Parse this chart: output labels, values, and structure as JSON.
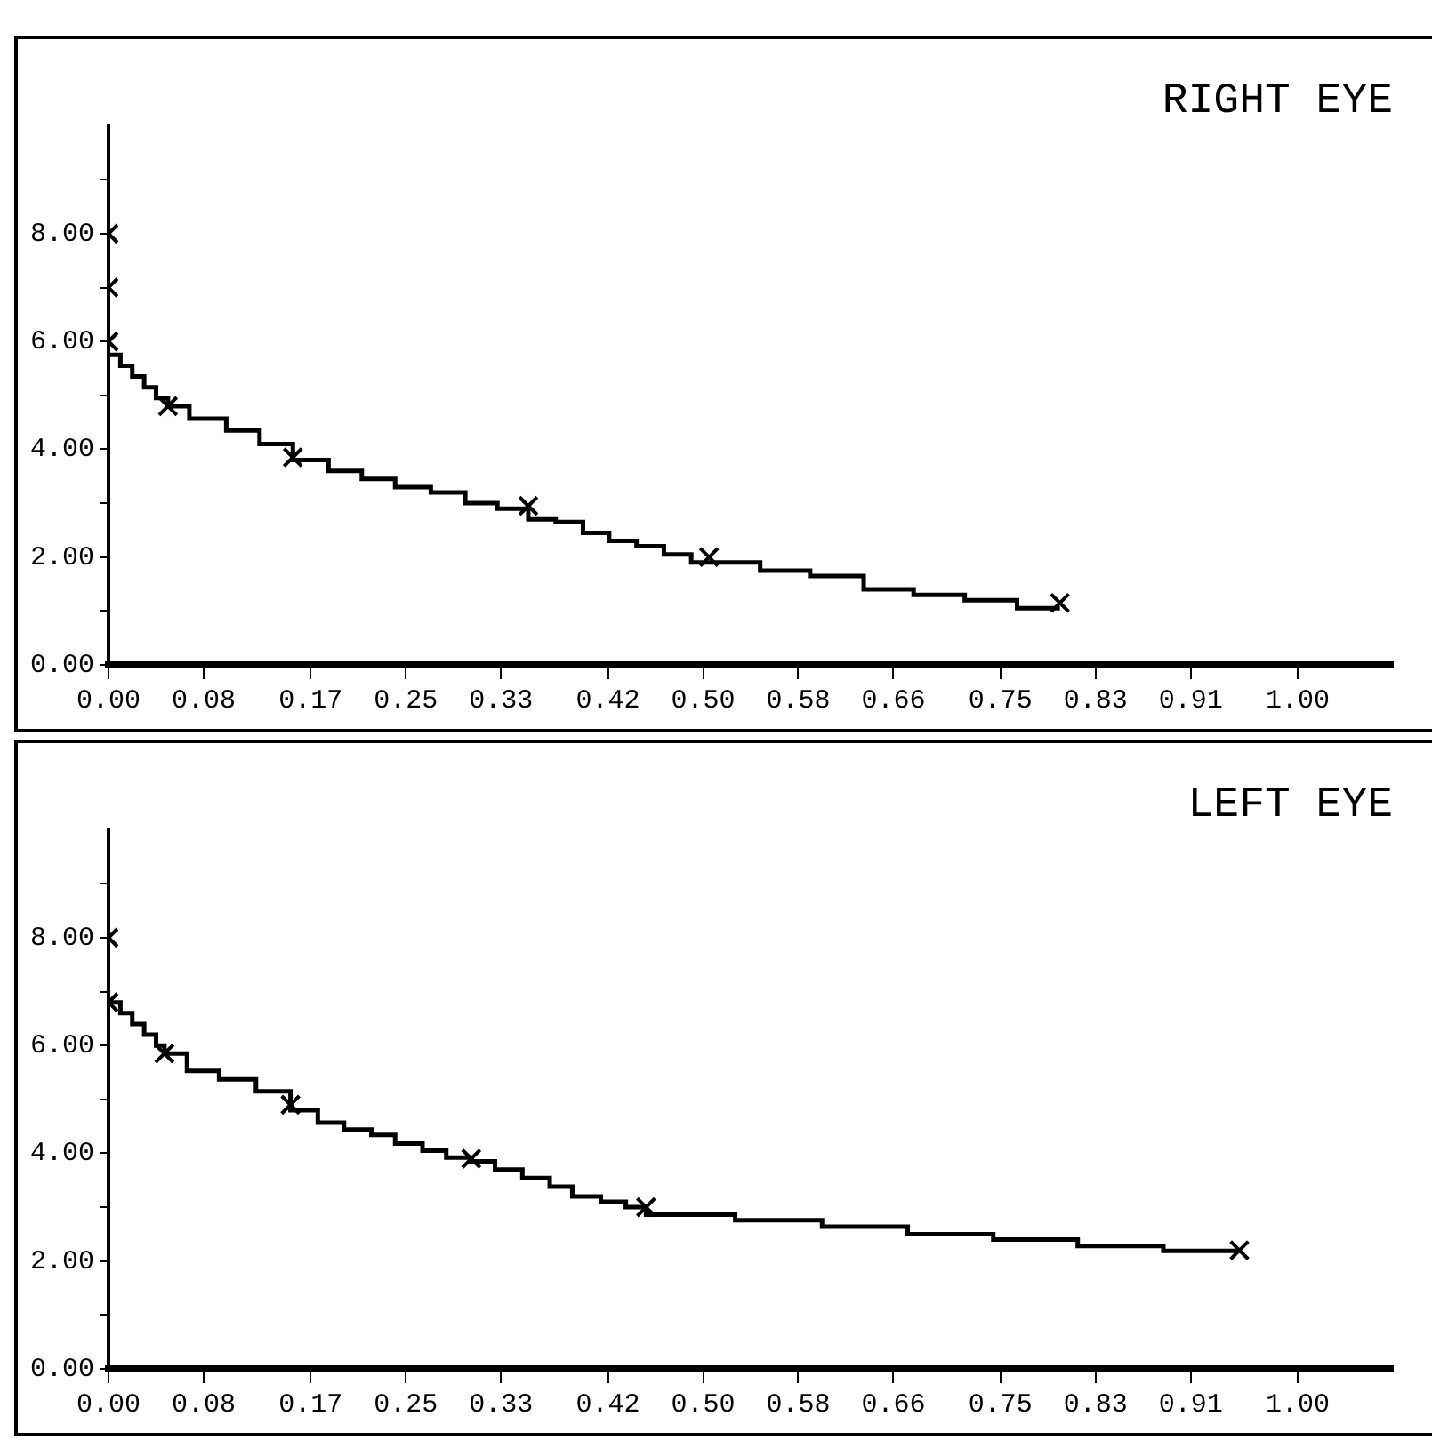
{
  "chart_data": [
    {
      "type": "step",
      "title": "RIGHT EYE",
      "xlim": [
        0,
        1.08
      ],
      "ylim": [
        0,
        10
      ],
      "grid": false,
      "legend": false,
      "xticks": [
        {
          "value": 0,
          "label": "0.00"
        },
        {
          "value": 0.08,
          "label": "0.08"
        },
        {
          "value": 0.17,
          "label": "0.17"
        },
        {
          "value": 0.25,
          "label": "0.25"
        },
        {
          "value": 0.33,
          "label": "0.33"
        },
        {
          "value": 0.42,
          "label": "0.42"
        },
        {
          "value": 0.5,
          "label": "0.50"
        },
        {
          "value": 0.58,
          "label": "0.58"
        },
        {
          "value": 0.66,
          "label": "0.66"
        },
        {
          "value": 0.75,
          "label": "0.75"
        },
        {
          "value": 0.83,
          "label": "0.83"
        },
        {
          "value": 0.91,
          "label": "0.91"
        },
        {
          "value": 1,
          "label": "1.00"
        }
      ],
      "yticks": [
        {
          "value": 0,
          "label": "0.00"
        },
        {
          "value": 1,
          "label": null
        },
        {
          "value": 2,
          "label": "2.00"
        },
        {
          "value": 3,
          "label": null
        },
        {
          "value": 4,
          "label": "4.00"
        },
        {
          "value": 5,
          "label": null
        },
        {
          "value": 6,
          "label": "6.00"
        },
        {
          "value": 7,
          "label": null
        },
        {
          "value": 8,
          "label": "8.00"
        },
        {
          "value": 9,
          "label": null
        }
      ],
      "series": [
        {
          "type": "step",
          "color": "#000000",
          "x": [
            0,
            0.01,
            0.02,
            0.03,
            0.04,
            0.05,
            0.068,
            0.099,
            0.127,
            0.155,
            0.185,
            0.213,
            0.241,
            0.271,
            0.3,
            0.327,
            0.353,
            0.376,
            0.399,
            0.421,
            0.444,
            0.467,
            0.49,
            0.548,
            0.59,
            0.635,
            0.677,
            0.72,
            0.764,
            0.8
          ],
          "values": [
            5.75,
            5.55,
            5.35,
            5.15,
            4.95,
            4.8,
            4.57,
            4.35,
            4.1,
            3.8,
            3.6,
            3.45,
            3.3,
            3.2,
            3.0,
            2.9,
            2.7,
            2.65,
            2.45,
            2.3,
            2.2,
            2.05,
            1.9,
            1.75,
            1.65,
            1.4,
            1.3,
            1.2,
            1.05,
            1.05
          ]
        },
        {
          "type": "scatter",
          "color": "#000000",
          "marker": "cross",
          "x": [
            0,
            0,
            0,
            0.05,
            0.155,
            0.353,
            0.505,
            0.8
          ],
          "values": [
            8.0,
            7.0,
            6.0,
            4.8,
            3.85,
            2.95,
            2.0,
            1.15
          ]
        }
      ]
    },
    {
      "type": "step",
      "title": "LEFT EYE",
      "xlim": [
        0,
        1.08
      ],
      "ylim": [
        0,
        10
      ],
      "grid": false,
      "legend": false,
      "xticks": [
        {
          "value": 0,
          "label": "0.00"
        },
        {
          "value": 0.08,
          "label": "0.08"
        },
        {
          "value": 0.17,
          "label": "0.17"
        },
        {
          "value": 0.25,
          "label": "0.25"
        },
        {
          "value": 0.33,
          "label": "0.33"
        },
        {
          "value": 0.42,
          "label": "0.42"
        },
        {
          "value": 0.5,
          "label": "0.50"
        },
        {
          "value": 0.58,
          "label": "0.58"
        },
        {
          "value": 0.66,
          "label": "0.66"
        },
        {
          "value": 0.75,
          "label": "0.75"
        },
        {
          "value": 0.83,
          "label": "0.83"
        },
        {
          "value": 0.91,
          "label": "0.91"
        },
        {
          "value": 1,
          "label": "1.00"
        }
      ],
      "yticks": [
        {
          "value": 0,
          "label": "0.00"
        },
        {
          "value": 1,
          "label": null
        },
        {
          "value": 2,
          "label": "2.00"
        },
        {
          "value": 3,
          "label": null
        },
        {
          "value": 4,
          "label": "4.00"
        },
        {
          "value": 5,
          "label": null
        },
        {
          "value": 6,
          "label": "6.00"
        },
        {
          "value": 7,
          "label": null
        },
        {
          "value": 8,
          "label": "8.00"
        },
        {
          "value": 9,
          "label": null
        }
      ],
      "series": [
        {
          "type": "step",
          "color": "#000000",
          "x": [
            0,
            0.01,
            0.02,
            0.03,
            0.04,
            0.047,
            0.066,
            0.093,
            0.124,
            0.153,
            0.176,
            0.198,
            0.221,
            0.241,
            0.264,
            0.284,
            0.305,
            0.325,
            0.348,
            0.371,
            0.39,
            0.414,
            0.435,
            0.452,
            0.527,
            0.6,
            0.672,
            0.744,
            0.815,
            0.887,
            0.951
          ],
          "values": [
            6.8,
            6.6,
            6.4,
            6.2,
            6.0,
            5.85,
            5.53,
            5.37,
            5.15,
            4.8,
            4.57,
            4.44,
            4.34,
            4.18,
            4.05,
            3.92,
            3.85,
            3.7,
            3.54,
            3.38,
            3.2,
            3.1,
            3.0,
            2.86,
            2.76,
            2.64,
            2.5,
            2.4,
            2.28,
            2.19,
            2.19
          ]
        },
        {
          "type": "scatter",
          "color": "#000000",
          "marker": "cross",
          "x": [
            0,
            0,
            0.047,
            0.153,
            0.305,
            0.452,
            0.951
          ],
          "values": [
            8.0,
            6.8,
            5.85,
            4.9,
            3.9,
            3.0,
            2.2
          ]
        }
      ]
    }
  ]
}
